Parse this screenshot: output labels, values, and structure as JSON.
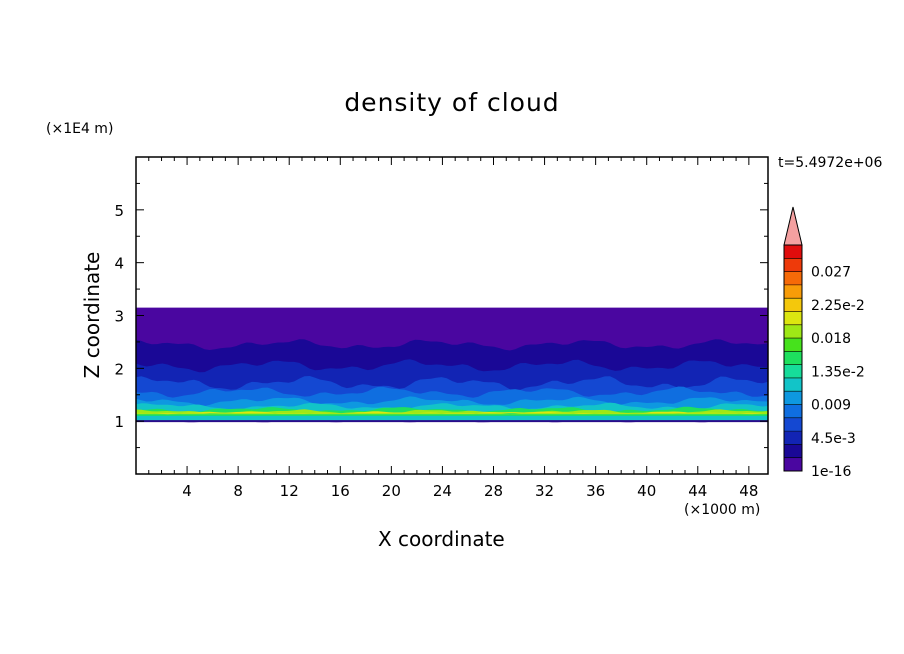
{
  "chart_data": {
    "type": "heatmap",
    "title": "density of cloud",
    "xlabel": "X coordinate",
    "ylabel": "Z coordinate",
    "x_units": "(×1000 m)",
    "z_units": "(×1E4 m)",
    "timestamp": "t=5.4972e+06",
    "x_ticks": [
      "4",
      "8",
      "12",
      "16",
      "20",
      "24",
      "28",
      "32",
      "36",
      "40",
      "44",
      "48"
    ],
    "y_ticks": [
      "1",
      "2",
      "3",
      "4",
      "5"
    ],
    "xlim": [
      0,
      49.5
    ],
    "ylim": [
      0,
      6
    ],
    "cloud_layer": {
      "base": 1.0,
      "top": 3.15
    },
    "colorbar": {
      "labels": [
        "1e-16",
        "4.5e-3",
        "0.009",
        "1.35e-2",
        "0.018",
        "2.25e-2",
        "0.027"
      ],
      "colors": [
        "#4a06a0",
        "#1a0896",
        "#1224b4",
        "#1448d2",
        "#0f6ee0",
        "#0e98e0",
        "#12c4c8",
        "#16dc9a",
        "#1ee05e",
        "#46e21c",
        "#9ee816",
        "#dce610",
        "#f4c80c",
        "#f89c08",
        "#f66a08",
        "#ee3a0a",
        "#e00c0c"
      ],
      "extend_color": "#f4a0a0"
    }
  }
}
